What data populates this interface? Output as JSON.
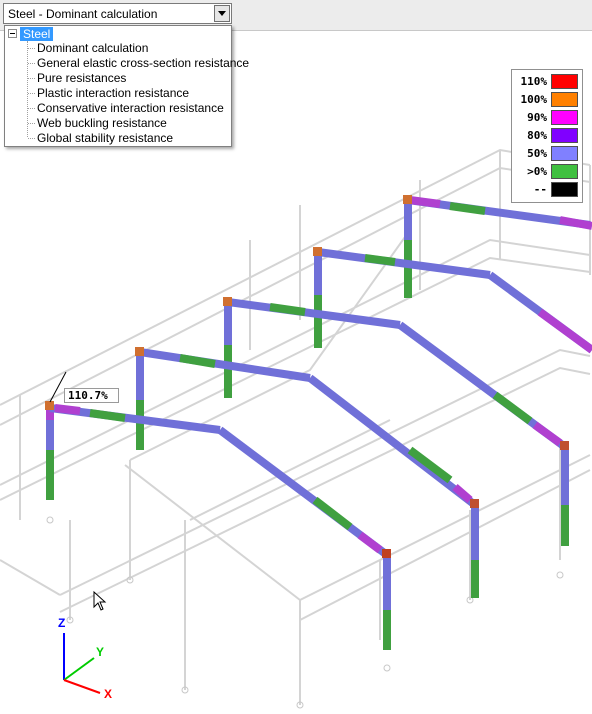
{
  "selector": {
    "value": "Steel - Dominant calculation",
    "tree": {
      "root": "Steel",
      "items": [
        "Dominant calculation",
        "General elastic cross-section resistance",
        "Pure resistances",
        "Plastic interaction resistance",
        "Conservative interaction resistance",
        "Web buckling resistance",
        "Global stability resistance"
      ]
    }
  },
  "legend": {
    "entries": [
      {
        "label": "110%",
        "color": "#ff0000"
      },
      {
        "label": "100%",
        "color": "#ff8000"
      },
      {
        "label": "90%",
        "color": "#ff00ff"
      },
      {
        "label": "80%",
        "color": "#8000ff"
      },
      {
        "label": "50%",
        "color": "#8080ff"
      },
      {
        "label": ">0%",
        "color": "#40c040"
      },
      {
        "label": "--",
        "color": "#000000"
      }
    ]
  },
  "max_callout": "110.7%",
  "axes": {
    "x": "X",
    "y": "Y",
    "z": "Z",
    "x_color": "#ff0000",
    "y_color": "#00cc00",
    "z_color": "#0000ff"
  }
}
